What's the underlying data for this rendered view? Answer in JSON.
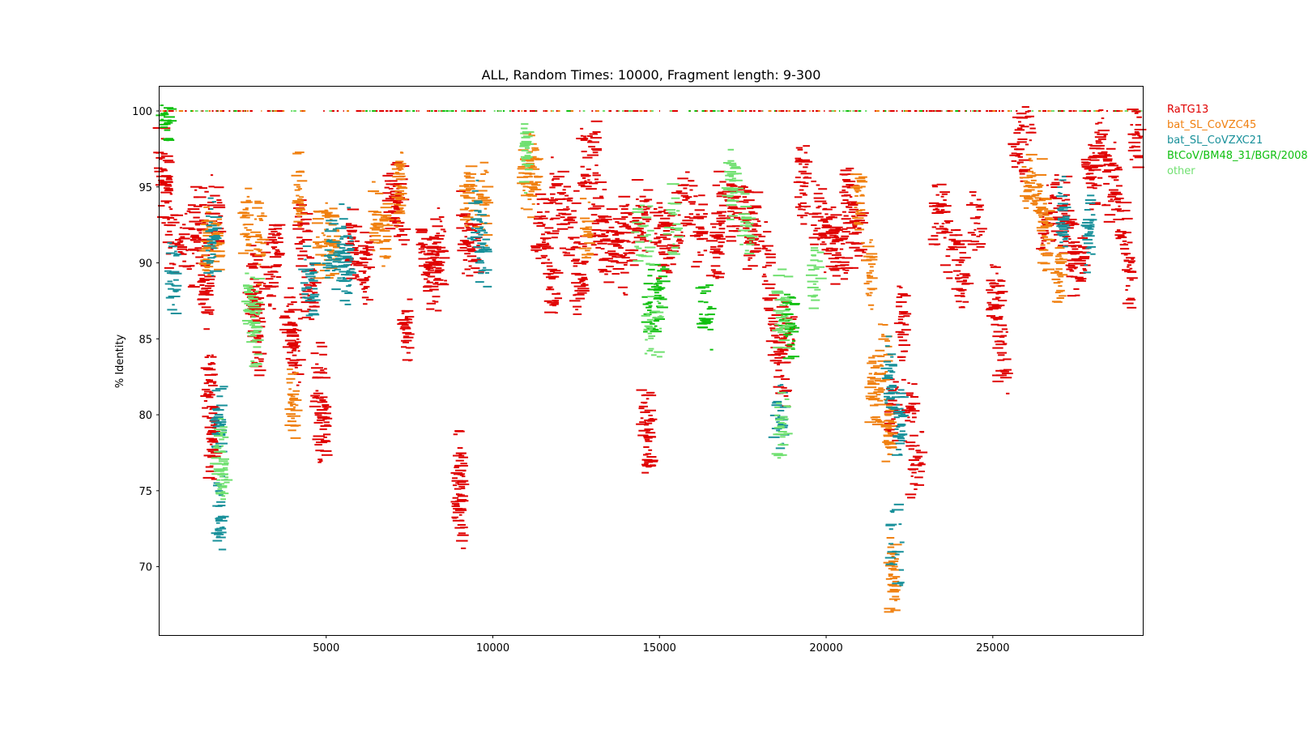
{
  "chart_data": {
    "type": "scatter",
    "title": "ALL, Random Times: 10000, Fragment length: 9-300",
    "xlabel": "",
    "ylabel": "% Identity",
    "xlim": [
      0,
      29500
    ],
    "ylim": [
      65.5,
      101.6
    ],
    "x_ticks": [
      5000,
      10000,
      15000,
      20000,
      25000
    ],
    "x_tick_labels": [
      "5000",
      "10000",
      "15000",
      "20000",
      "25000"
    ],
    "y_ticks": [
      70,
      75,
      80,
      85,
      90,
      95,
      100
    ],
    "y_tick_labels": [
      "70",
      "75",
      "80",
      "85",
      "90",
      "95",
      "100"
    ],
    "grid": false,
    "legend_placement": "outside-right",
    "mark_style": "short horizontal segments (one per random fragment)",
    "series": [
      {
        "name": "RaTG13",
        "color": "#e00000",
        "segments": [
          [
            100,
            96.5,
            300
          ],
          [
            200,
            94.2,
            250
          ],
          [
            500,
            91.6,
            400
          ],
          [
            900,
            91.0,
            400
          ],
          [
            1200,
            92.5,
            400
          ],
          [
            1400,
            88.0,
            250
          ],
          [
            1500,
            82.0,
            250
          ],
          [
            1600,
            78.0,
            200
          ],
          [
            1700,
            93.0,
            300
          ],
          [
            2800,
            88.5,
            300
          ],
          [
            2900,
            85.2,
            300
          ],
          [
            3300,
            89.0,
            250
          ],
          [
            3500,
            91.2,
            250
          ],
          [
            3900,
            86.0,
            300
          ],
          [
            4100,
            84.5,
            250
          ],
          [
            4300,
            92.0,
            300
          ],
          [
            4500,
            88.0,
            300
          ],
          [
            4800,
            82.0,
            300
          ],
          [
            4900,
            79.0,
            250
          ],
          [
            5800,
            91.0,
            250
          ],
          [
            6200,
            90.0,
            250
          ],
          [
            7000,
            94.5,
            300
          ],
          [
            7200,
            93.5,
            300
          ],
          [
            7400,
            86.0,
            200
          ],
          [
            8000,
            90.8,
            300
          ],
          [
            8200,
            89.5,
            300
          ],
          [
            8400,
            91.0,
            300
          ],
          [
            9000,
            76.5,
            250
          ],
          [
            9000,
            74.0,
            250
          ],
          [
            9200,
            92.0,
            300
          ],
          [
            9400,
            91.0,
            300
          ],
          [
            11500,
            92.0,
            350
          ],
          [
            11800,
            88.0,
            300
          ],
          [
            12000,
            94.0,
            400
          ],
          [
            12300,
            92.5,
            400
          ],
          [
            12600,
            89.0,
            300
          ],
          [
            12900,
            97.0,
            400
          ],
          [
            13200,
            93.0,
            400
          ],
          [
            13500,
            91.5,
            400
          ],
          [
            13800,
            90.5,
            400
          ],
          [
            14100,
            92.0,
            400
          ],
          [
            14500,
            93.0,
            300
          ],
          [
            14600,
            80.5,
            250
          ],
          [
            14700,
            78.0,
            250
          ],
          [
            15100,
            91.5,
            400
          ],
          [
            15400,
            92.0,
            400
          ],
          [
            15800,
            94.0,
            400
          ],
          [
            16200,
            92.5,
            350
          ],
          [
            16700,
            90.5,
            300
          ],
          [
            17000,
            93.5,
            500
          ],
          [
            17400,
            93.0,
            500
          ],
          [
            17800,
            92.5,
            300
          ],
          [
            18200,
            90.0,
            300
          ],
          [
            18500,
            85.5,
            400
          ],
          [
            18700,
            83.0,
            300
          ],
          [
            18900,
            85.0,
            300
          ],
          [
            19300,
            95.5,
            250
          ],
          [
            19800,
            93.0,
            400
          ],
          [
            20100,
            92.0,
            400
          ],
          [
            20400,
            91.0,
            400
          ],
          [
            20700,
            94.0,
            300
          ],
          [
            21000,
            92.0,
            300
          ],
          [
            22000,
            80.0,
            250
          ],
          [
            22300,
            86.0,
            200
          ],
          [
            22500,
            80.5,
            300
          ],
          [
            22700,
            77.0,
            300
          ],
          [
            23400,
            93.5,
            400
          ],
          [
            23800,
            91.0,
            400
          ],
          [
            24100,
            89.5,
            300
          ],
          [
            24500,
            93.0,
            300
          ],
          [
            25100,
            88.0,
            350
          ],
          [
            25300,
            84.0,
            250
          ],
          [
            25800,
            97.0,
            300
          ],
          [
            26000,
            99.8,
            400
          ],
          [
            26600,
            92.5,
            300
          ],
          [
            27000,
            93.5,
            400
          ],
          [
            27300,
            91.5,
            300
          ],
          [
            27600,
            90.0,
            400
          ],
          [
            28000,
            96.0,
            400
          ],
          [
            28200,
            98.0,
            300
          ],
          [
            28600,
            95.5,
            400
          ],
          [
            28900,
            92.5,
            250
          ],
          [
            29100,
            89.0,
            250
          ],
          [
            29300,
            98.5,
            250
          ]
        ]
      },
      {
        "name": "bat_SL_CoVZC45",
        "color": "#f08010",
        "segments": [
          [
            1400,
            91.0,
            200
          ],
          [
            1700,
            91.5,
            200
          ],
          [
            2600,
            93.0,
            150
          ],
          [
            3000,
            91.5,
            200
          ],
          [
            4000,
            80.5,
            200
          ],
          [
            4200,
            94.5,
            150
          ],
          [
            4900,
            91.5,
            300
          ],
          [
            5200,
            91.0,
            250
          ],
          [
            6500,
            93.0,
            150
          ],
          [
            6800,
            92.0,
            150
          ],
          [
            7200,
            95.0,
            150
          ],
          [
            9300,
            94.5,
            300
          ],
          [
            9700,
            94.0,
            300
          ],
          [
            11000,
            95.5,
            300
          ],
          [
            11200,
            96.0,
            300
          ],
          [
            12800,
            92.0,
            200
          ],
          [
            21000,
            94.0,
            200
          ],
          [
            21300,
            89.0,
            150
          ],
          [
            21500,
            81.5,
            300
          ],
          [
            21700,
            84.0,
            300
          ],
          [
            21900,
            79.0,
            200
          ],
          [
            22000,
            69.5,
            200
          ],
          [
            26100,
            95.5,
            300
          ],
          [
            26400,
            94.0,
            300
          ],
          [
            26600,
            92.0,
            200
          ],
          [
            27000,
            89.5,
            200
          ]
        ]
      },
      {
        "name": "bat_SL_CoVZXC21",
        "color": "#18909a",
        "segments": [
          [
            400,
            89.0,
            250
          ],
          [
            1600,
            91.5,
            250
          ],
          [
            1800,
            80.0,
            250
          ],
          [
            1800,
            73.0,
            200
          ],
          [
            4500,
            88.5,
            300
          ],
          [
            5200,
            90.5,
            350
          ],
          [
            5500,
            90.0,
            350
          ],
          [
            5600,
            91.0,
            300
          ],
          [
            9500,
            93.0,
            300
          ],
          [
            9700,
            91.0,
            250
          ],
          [
            18600,
            80.0,
            300
          ],
          [
            21900,
            82.5,
            200
          ],
          [
            22100,
            71.5,
            300
          ],
          [
            22200,
            79.5,
            200
          ],
          [
            27100,
            93.0,
            200
          ],
          [
            27900,
            92.0,
            200
          ]
        ]
      },
      {
        "name": "BtCoV/BM48_31/BGR/2008",
        "color": "#10c010",
        "segments": [
          [
            200,
            100.0,
            300
          ],
          [
            14800,
            87.5,
            400
          ],
          [
            15000,
            88.0,
            300
          ],
          [
            16400,
            87.0,
            300
          ],
          [
            18900,
            86.0,
            300
          ]
        ]
      },
      {
        "name": "other",
        "color": "#70e070",
        "segments": [
          [
            1900,
            76.0,
            200
          ],
          [
            1800,
            77.5,
            200
          ],
          [
            2700,
            87.0,
            200
          ],
          [
            2900,
            86.0,
            200
          ],
          [
            11000,
            97.0,
            150
          ],
          [
            14500,
            91.5,
            400
          ],
          [
            14800,
            85.5,
            400
          ],
          [
            15400,
            93.0,
            300
          ],
          [
            17200,
            95.0,
            300
          ],
          [
            17600,
            92.5,
            300
          ],
          [
            18700,
            87.0,
            300
          ],
          [
            18700,
            79.5,
            300
          ],
          [
            19700,
            89.0,
            250
          ]
        ]
      }
    ],
    "top_band_y": 100.0
  },
  "legend": {
    "items": [
      {
        "label": "RaTG13",
        "color": "#e00000"
      },
      {
        "label": "bat_SL_CoVZC45",
        "color": "#f08010"
      },
      {
        "label": "bat_SL_CoVZXC21",
        "color": "#18909a"
      },
      {
        "label": "BtCoV/BM48_31/BGR/2008",
        "color": "#10c010"
      },
      {
        "label": "other",
        "color": "#70e070"
      }
    ]
  }
}
